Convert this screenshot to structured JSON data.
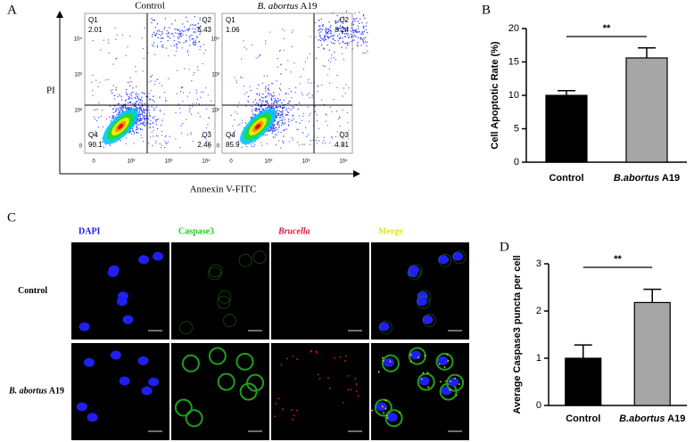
{
  "panel_letters": [
    "A",
    "B",
    "C",
    "D"
  ],
  "flow": {
    "y_label": "PI",
    "x_label": "Annexin V-FITC",
    "tick_labels": [
      "0",
      "10²",
      "10³",
      "10⁴"
    ],
    "plots": [
      {
        "title": "Control",
        "quadrants": [
          {
            "name": "Q1",
            "value": "2.01"
          },
          {
            "name": "Q2",
            "value": "5.43"
          },
          {
            "name": "Q3",
            "value": "2.46"
          },
          {
            "name": "Q4",
            "value": "90.1"
          }
        ]
      },
      {
        "title": "B. abortus A19",
        "quadrants": [
          {
            "name": "Q1",
            "value": "1.06"
          },
          {
            "name": "Q2",
            "value": "8.24"
          },
          {
            "name": "Q3",
            "value": "4.81"
          },
          {
            "name": "Q4",
            "value": "85.9"
          }
        ]
      }
    ]
  },
  "microscopy": {
    "columns": [
      "DAPI",
      "Caspase3",
      "Brucella",
      "Merge"
    ],
    "column_colors": [
      "#1a1aff",
      "#22cc22",
      "#e0143c",
      "#e8e800"
    ],
    "rows": [
      "Control",
      "B. abortus A19"
    ]
  },
  "chart_data": [
    {
      "type": "bar",
      "y_label": "Cell Apoptotic Rate (%)",
      "categories": [
        "Control",
        "B.abortus A19"
      ],
      "values": [
        10.0,
        15.6
      ],
      "errors": [
        0.7,
        1.5
      ],
      "colors": [
        "#000000",
        "#a6a6a6"
      ],
      "ylim": [
        0,
        20
      ],
      "yticks": [
        0,
        5,
        10,
        15,
        20
      ],
      "annotation": "**"
    },
    {
      "type": "bar",
      "y_label": "Average Caspase3 puncta per cell",
      "categories": [
        "Control",
        "B.abortus A19"
      ],
      "values": [
        1.0,
        2.18
      ],
      "errors": [
        0.28,
        0.28
      ],
      "colors": [
        "#000000",
        "#a6a6a6"
      ],
      "ylim": [
        0,
        3
      ],
      "yticks": [
        0,
        1,
        2,
        3
      ],
      "annotation": "**"
    }
  ]
}
